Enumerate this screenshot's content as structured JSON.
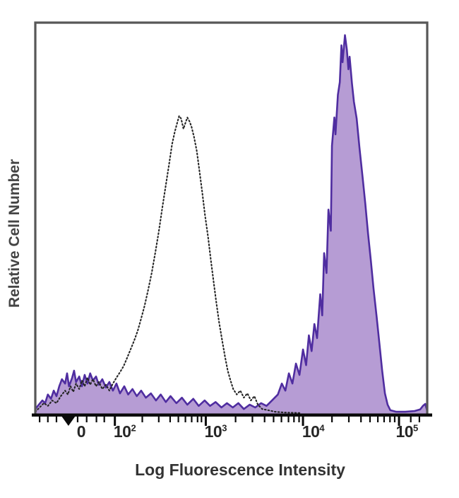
{
  "chart_data": {
    "type": "area",
    "subtype": "flow-cytometry-histogram-overlay",
    "title": "",
    "xlabel": "Log Fluorescence Intensity",
    "ylabel": "Relative Cell Number",
    "x_scale": "biexponential-log",
    "ylim": [
      0,
      1
    ],
    "y_ticks": [],
    "grid": false,
    "legend": "none",
    "x_ticks": [
      {
        "label": "0",
        "u": 0.0845,
        "label_u": 0.117,
        "wedge": true
      },
      {
        "base": "10",
        "exp": "2",
        "u": 0.203,
        "label_u": 0.228
      },
      {
        "base": "10",
        "exp": "3",
        "u": 0.435,
        "label_u": 0.46
      },
      {
        "base": "10",
        "exp": "4",
        "u": 0.683,
        "label_u": 0.709
      },
      {
        "base": "10",
        "exp": "5",
        "u": 0.928,
        "label_u": 0.948
      }
    ],
    "x_minor_ticks_u": [
      0.011,
      0.032,
      0.054,
      0.108,
      0.131,
      0.156,
      0.176,
      0.273,
      0.315,
      0.344,
      0.365,
      0.383,
      0.399,
      0.414,
      0.424,
      0.511,
      0.554,
      0.585,
      0.608,
      0.628,
      0.646,
      0.66,
      0.673,
      0.757,
      0.8,
      0.831,
      0.854,
      0.874,
      0.89,
      0.905,
      0.917,
      0.958,
      0.98
    ],
    "series": [
      {
        "name": "purple-filled-histogram",
        "style": "filled",
        "stroke": "#4f2da0",
        "fill": "#b69cd4",
        "stroke_width": 2.6,
        "peak_fluorescence": "~3x10^4",
        "peak_relative_height": 0.97,
        "points": [
          [
            0.0,
            0.014
          ],
          [
            0.009,
            0.025
          ],
          [
            0.018,
            0.036
          ],
          [
            0.025,
            0.029
          ],
          [
            0.032,
            0.051
          ],
          [
            0.04,
            0.04
          ],
          [
            0.047,
            0.061
          ],
          [
            0.054,
            0.047
          ],
          [
            0.061,
            0.072
          ],
          [
            0.068,
            0.09
          ],
          [
            0.076,
            0.079
          ],
          [
            0.081,
            0.105
          ],
          [
            0.086,
            0.072
          ],
          [
            0.094,
            0.094
          ],
          [
            0.099,
            0.112
          ],
          [
            0.104,
            0.083
          ],
          [
            0.112,
            0.097
          ],
          [
            0.119,
            0.072
          ],
          [
            0.126,
            0.101
          ],
          [
            0.133,
            0.079
          ],
          [
            0.14,
            0.105
          ],
          [
            0.147,
            0.087
          ],
          [
            0.155,
            0.097
          ],
          [
            0.162,
            0.076
          ],
          [
            0.171,
            0.09
          ],
          [
            0.18,
            0.069
          ],
          [
            0.189,
            0.083
          ],
          [
            0.198,
            0.061
          ],
          [
            0.207,
            0.079
          ],
          [
            0.216,
            0.054
          ],
          [
            0.227,
            0.072
          ],
          [
            0.237,
            0.051
          ],
          [
            0.248,
            0.065
          ],
          [
            0.259,
            0.047
          ],
          [
            0.27,
            0.061
          ],
          [
            0.282,
            0.043
          ],
          [
            0.295,
            0.054
          ],
          [
            0.308,
            0.036
          ],
          [
            0.32,
            0.051
          ],
          [
            0.333,
            0.032
          ],
          [
            0.345,
            0.047
          ],
          [
            0.36,
            0.029
          ],
          [
            0.374,
            0.043
          ],
          [
            0.388,
            0.025
          ],
          [
            0.403,
            0.04
          ],
          [
            0.417,
            0.022
          ],
          [
            0.432,
            0.036
          ],
          [
            0.446,
            0.022
          ],
          [
            0.46,
            0.032
          ],
          [
            0.475,
            0.018
          ],
          [
            0.489,
            0.029
          ],
          [
            0.504,
            0.018
          ],
          [
            0.518,
            0.029
          ],
          [
            0.532,
            0.014
          ],
          [
            0.547,
            0.025
          ],
          [
            0.561,
            0.018
          ],
          [
            0.576,
            0.029
          ],
          [
            0.59,
            0.022
          ],
          [
            0.604,
            0.036
          ],
          [
            0.619,
            0.051
          ],
          [
            0.629,
            0.079
          ],
          [
            0.638,
            0.061
          ],
          [
            0.647,
            0.105
          ],
          [
            0.656,
            0.079
          ],
          [
            0.665,
            0.13
          ],
          [
            0.674,
            0.101
          ],
          [
            0.683,
            0.166
          ],
          [
            0.691,
            0.126
          ],
          [
            0.698,
            0.202
          ],
          [
            0.705,
            0.162
          ],
          [
            0.712,
            0.231
          ],
          [
            0.719,
            0.195
          ],
          [
            0.727,
            0.307
          ],
          [
            0.732,
            0.253
          ],
          [
            0.737,
            0.412
          ],
          [
            0.743,
            0.361
          ],
          [
            0.748,
            0.523
          ],
          [
            0.754,
            0.469
          ],
          [
            0.757,
            0.686
          ],
          [
            0.763,
            0.758
          ],
          [
            0.766,
            0.715
          ],
          [
            0.772,
            0.816
          ],
          [
            0.777,
            0.848
          ],
          [
            0.781,
            0.942
          ],
          [
            0.784,
            0.899
          ],
          [
            0.79,
            0.968
          ],
          [
            0.795,
            0.931
          ],
          [
            0.799,
            0.881
          ],
          [
            0.802,
            0.913
          ],
          [
            0.808,
            0.845
          ],
          [
            0.813,
            0.798
          ],
          [
            0.82,
            0.755
          ],
          [
            0.827,
            0.682
          ],
          [
            0.835,
            0.607
          ],
          [
            0.842,
            0.538
          ],
          [
            0.849,
            0.462
          ],
          [
            0.856,
            0.394
          ],
          [
            0.863,
            0.321
          ],
          [
            0.871,
            0.249
          ],
          [
            0.878,
            0.181
          ],
          [
            0.885,
            0.112
          ],
          [
            0.892,
            0.054
          ],
          [
            0.899,
            0.025
          ],
          [
            0.906,
            0.011
          ],
          [
            0.921,
            0.007
          ],
          [
            0.944,
            0.007
          ],
          [
            0.968,
            0.009
          ],
          [
            0.982,
            0.013
          ],
          [
            0.989,
            0.022
          ],
          [
            0.995,
            0.027
          ],
          [
            1.0,
            0.009
          ]
        ]
      },
      {
        "name": "dotted-open-histogram",
        "style": "dotted-outline",
        "stroke": "#262626",
        "fill": "none",
        "stroke_width": 2.1,
        "dash": "1.6 3.2",
        "peak_fluorescence": "~5x10^2",
        "peak_relative_height": 0.76,
        "points": [
          [
            0.0,
            0.007
          ],
          [
            0.011,
            0.018
          ],
          [
            0.022,
            0.029
          ],
          [
            0.032,
            0.022
          ],
          [
            0.043,
            0.036
          ],
          [
            0.054,
            0.029
          ],
          [
            0.065,
            0.047
          ],
          [
            0.076,
            0.061
          ],
          [
            0.083,
            0.051
          ],
          [
            0.09,
            0.072
          ],
          [
            0.097,
            0.058
          ],
          [
            0.104,
            0.079
          ],
          [
            0.112,
            0.065
          ],
          [
            0.119,
            0.087
          ],
          [
            0.126,
            0.072
          ],
          [
            0.133,
            0.094
          ],
          [
            0.14,
            0.076
          ],
          [
            0.147,
            0.09
          ],
          [
            0.155,
            0.072
          ],
          [
            0.162,
            0.083
          ],
          [
            0.171,
            0.065
          ],
          [
            0.18,
            0.076
          ],
          [
            0.189,
            0.061
          ],
          [
            0.198,
            0.079
          ],
          [
            0.207,
            0.094
          ],
          [
            0.216,
            0.108
          ],
          [
            0.225,
            0.123
          ],
          [
            0.234,
            0.144
          ],
          [
            0.243,
            0.166
          ],
          [
            0.252,
            0.188
          ],
          [
            0.261,
            0.213
          ],
          [
            0.27,
            0.245
          ],
          [
            0.279,
            0.278
          ],
          [
            0.288,
            0.318
          ],
          [
            0.297,
            0.361
          ],
          [
            0.306,
            0.412
          ],
          [
            0.315,
            0.466
          ],
          [
            0.324,
            0.527
          ],
          [
            0.333,
            0.585
          ],
          [
            0.342,
            0.643
          ],
          [
            0.349,
            0.69
          ],
          [
            0.356,
            0.722
          ],
          [
            0.362,
            0.744
          ],
          [
            0.367,
            0.762
          ],
          [
            0.372,
            0.755
          ],
          [
            0.378,
            0.729
          ],
          [
            0.383,
            0.744
          ],
          [
            0.388,
            0.758
          ],
          [
            0.394,
            0.747
          ],
          [
            0.399,
            0.733
          ],
          [
            0.405,
            0.708
          ],
          [
            0.412,
            0.672
          ],
          [
            0.419,
            0.621
          ],
          [
            0.426,
            0.567
          ],
          [
            0.433,
            0.509
          ],
          [
            0.441,
            0.451
          ],
          [
            0.448,
            0.394
          ],
          [
            0.455,
            0.339
          ],
          [
            0.462,
            0.285
          ],
          [
            0.469,
            0.235
          ],
          [
            0.477,
            0.188
          ],
          [
            0.484,
            0.148
          ],
          [
            0.491,
            0.112
          ],
          [
            0.498,
            0.087
          ],
          [
            0.505,
            0.065
          ],
          [
            0.514,
            0.051
          ],
          [
            0.523,
            0.061
          ],
          [
            0.532,
            0.043
          ],
          [
            0.541,
            0.054
          ],
          [
            0.55,
            0.036
          ],
          [
            0.559,
            0.047
          ],
          [
            0.568,
            0.025
          ],
          [
            0.579,
            0.014
          ],
          [
            0.594,
            0.011
          ],
          [
            0.612,
            0.007
          ],
          [
            0.638,
            0.005
          ],
          [
            0.674,
            0.004
          ]
        ]
      }
    ]
  },
  "colors": {
    "frame": "#575757",
    "axis": "#0a0a0a",
    "tick_label_text": "#262626",
    "axis_title_text": "#3c3c3c",
    "background": "#ffffff",
    "purple_stroke": "#4f2da0",
    "purple_fill": "#b69cd4",
    "dotted_stroke": "#262626"
  }
}
